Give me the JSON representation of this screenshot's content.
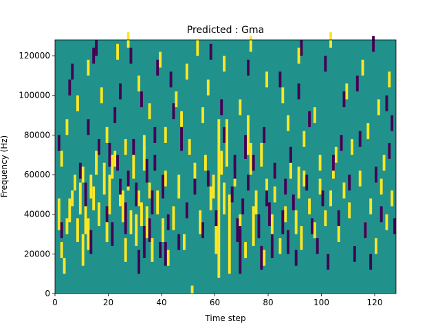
{
  "chart_data": {
    "type": "heatmap",
    "title": "Predicted : Gma",
    "xlabel": "Time step",
    "ylabel": "Frequency (Hz)",
    "xlim": [
      0,
      128
    ],
    "ylim": [
      0,
      128000
    ],
    "grid": false,
    "legend": "none",
    "xticks": [
      0,
      20,
      40,
      60,
      80,
      100,
      120
    ],
    "xtick_labels": [
      "0",
      "20",
      "40",
      "60",
      "80",
      "100",
      "120"
    ],
    "yticks": [
      0,
      20000,
      40000,
      60000,
      80000,
      100000,
      120000
    ],
    "ytick_labels": [
      "0",
      "20000",
      "40000",
      "60000",
      "80000",
      "100000",
      "120000"
    ],
    "colors": {
      "background": "#21918c",
      "high": "#fde725",
      "low": "#440154"
    },
    "cell_size": {
      "time_steps": 1,
      "hz": 2000
    },
    "high_cells": [
      [
        1,
        32000,
        8
      ],
      [
        2,
        18000,
        4
      ],
      [
        3,
        10000,
        4
      ],
      [
        4,
        30000,
        4
      ],
      [
        5,
        36000,
        6
      ],
      [
        6,
        44000,
        4
      ],
      [
        7,
        52000,
        4
      ],
      [
        8,
        26000,
        6
      ],
      [
        9,
        40000,
        8
      ],
      [
        10,
        14000,
        8
      ],
      [
        11,
        30000,
        10
      ],
      [
        12,
        22000,
        8
      ],
      [
        13,
        48000,
        6
      ],
      [
        14,
        42000,
        6
      ],
      [
        15,
        60000,
        6
      ],
      [
        16,
        34000,
        6
      ],
      [
        18,
        50000,
        8
      ],
      [
        19,
        26000,
        6
      ],
      [
        20,
        40000,
        10
      ],
      [
        21,
        58000,
        6
      ],
      [
        22,
        64000,
        4
      ],
      [
        24,
        44000,
        6
      ],
      [
        25,
        36000,
        8
      ],
      [
        26,
        16000,
        6
      ],
      [
        27,
        52000,
        4
      ],
      [
        28,
        30000,
        6
      ],
      [
        29,
        58000,
        6
      ],
      [
        30,
        24000,
        8
      ],
      [
        31,
        44000,
        4
      ],
      [
        32,
        34000,
        6
      ],
      [
        33,
        62000,
        6
      ],
      [
        34,
        28000,
        8
      ],
      [
        35,
        48000,
        4
      ],
      [
        36,
        16000,
        6
      ],
      [
        38,
        40000,
        6
      ],
      [
        40,
        26000,
        6
      ],
      [
        41,
        54000,
        4
      ],
      [
        42,
        14000,
        4
      ],
      [
        44,
        32000,
        6
      ],
      [
        46,
        48000,
        6
      ],
      [
        48,
        22000,
        4
      ],
      [
        50,
        70000,
        4
      ],
      [
        51,
        0,
        2
      ],
      [
        52,
        58000,
        4
      ],
      [
        54,
        30000,
        6
      ],
      [
        56,
        62000,
        4
      ],
      [
        58,
        42000,
        6
      ],
      [
        59,
        48000,
        6
      ],
      [
        60,
        20000,
        10
      ],
      [
        61,
        8000,
        40
      ],
      [
        62,
        60000,
        6
      ],
      [
        63,
        40000,
        8
      ],
      [
        64,
        64000,
        12
      ],
      [
        65,
        10000,
        20
      ],
      [
        67,
        54000,
        4
      ],
      [
        69,
        32000,
        4
      ],
      [
        71,
        18000,
        4
      ],
      [
        72,
        70000,
        10
      ],
      [
        73,
        60000,
        8
      ],
      [
        74,
        24000,
        10
      ],
      [
        75,
        40000,
        6
      ],
      [
        77,
        64000,
        6
      ],
      [
        78,
        14000,
        4
      ],
      [
        79,
        50000,
        4
      ],
      [
        81,
        28000,
        6
      ],
      [
        82,
        46000,
        4
      ],
      [
        84,
        20000,
        4
      ],
      [
        86,
        36000,
        4
      ],
      [
        88,
        58000,
        4
      ],
      [
        90,
        30000,
        6
      ],
      [
        91,
        48000,
        8
      ],
      [
        92,
        22000,
        6
      ],
      [
        93,
        54000,
        4
      ],
      [
        95,
        40000,
        4
      ],
      [
        97,
        28000,
        4
      ],
      [
        99,
        50000,
        4
      ],
      [
        101,
        34000,
        4
      ],
      [
        103,
        44000,
        4
      ],
      [
        104,
        58000,
        4
      ],
      [
        106,
        26000,
        4
      ],
      [
        108,
        48000,
        4
      ],
      [
        110,
        38000,
        4
      ],
      [
        112,
        16000,
        4
      ],
      [
        114,
        54000,
        4
      ],
      [
        116,
        28000,
        4
      ],
      [
        118,
        40000,
        4
      ],
      [
        120,
        20000,
        4
      ],
      [
        122,
        50000,
        4
      ],
      [
        124,
        32000,
        4
      ],
      [
        126,
        44000,
        4
      ],
      [
        8,
        92000,
        4
      ],
      [
        12,
        110000,
        4
      ],
      [
        17,
        96000,
        4
      ],
      [
        23,
        118000,
        4
      ],
      [
        27,
        124000,
        4
      ],
      [
        31,
        102000,
        4
      ],
      [
        35,
        88000,
        4
      ],
      [
        39,
        114000,
        4
      ],
      [
        45,
        94000,
        4
      ],
      [
        49,
        108000,
        4
      ],
      [
        53,
        120000,
        4
      ],
      [
        57,
        100000,
        4
      ],
      [
        63,
        112000,
        4
      ],
      [
        69,
        90000,
        4
      ],
      [
        73,
        122000,
        4
      ],
      [
        79,
        104000,
        4
      ],
      [
        85,
        96000,
        4
      ],
      [
        91,
        116000,
        4
      ],
      [
        97,
        86000,
        4
      ],
      [
        103,
        124000,
        4
      ],
      [
        109,
        98000,
        4
      ],
      [
        115,
        110000,
        4
      ],
      [
        121,
        90000,
        4
      ],
      [
        125,
        104000,
        4
      ],
      [
        4,
        80000,
        4
      ],
      [
        19,
        76000,
        4
      ],
      [
        33,
        72000,
        4
      ],
      [
        47,
        84000,
        4
      ],
      [
        77,
        68000,
        4
      ],
      [
        93,
        74000,
        4
      ],
      [
        105,
        66000,
        4
      ],
      [
        117,
        78000,
        4
      ],
      [
        2,
        64000,
        4
      ],
      [
        10,
        56000,
        4
      ],
      [
        26,
        70000,
        4
      ],
      [
        41,
        76000,
        4
      ],
      [
        55,
        86000,
        4
      ],
      [
        87,
        82000,
        4
      ],
      [
        99,
        62000,
        4
      ],
      [
        111,
        70000,
        4
      ],
      [
        123,
        62000,
        4
      ]
    ],
    "low_cells": [
      [
        2,
        28000,
        4
      ],
      [
        6,
        108000,
        4
      ],
      [
        9,
        58000,
        4
      ],
      [
        11,
        44000,
        6
      ],
      [
        13,
        20000,
        6
      ],
      [
        15,
        120000,
        4
      ],
      [
        16,
        70000,
        4
      ],
      [
        19,
        36000,
        4
      ],
      [
        20,
        64000,
        6
      ],
      [
        21,
        24000,
        6
      ],
      [
        22,
        86000,
        4
      ],
      [
        24,
        50000,
        4
      ],
      [
        26,
        30000,
        8
      ],
      [
        27,
        54000,
        4
      ],
      [
        28,
        116000,
        4
      ],
      [
        29,
        70000,
        4
      ],
      [
        30,
        44000,
        6
      ],
      [
        31,
        10000,
        6
      ],
      [
        32,
        94000,
        4
      ],
      [
        33,
        18000,
        8
      ],
      [
        34,
        56000,
        6
      ],
      [
        35,
        26000,
        6
      ],
      [
        36,
        40000,
        6
      ],
      [
        37,
        62000,
        4
      ],
      [
        38,
        110000,
        4
      ],
      [
        39,
        18000,
        4
      ],
      [
        40,
        48000,
        6
      ],
      [
        41,
        14000,
        6
      ],
      [
        42,
        32000,
        4
      ],
      [
        44,
        88000,
        4
      ],
      [
        46,
        22000,
        4
      ],
      [
        47,
        72000,
        6
      ],
      [
        49,
        38000,
        4
      ],
      [
        52,
        50000,
        4
      ],
      [
        55,
        28000,
        4
      ],
      [
        57,
        54000,
        4
      ],
      [
        60,
        34000,
        4
      ],
      [
        62,
        90000,
        4
      ],
      [
        66,
        46000,
        4
      ],
      [
        67,
        58000,
        6
      ],
      [
        68,
        26000,
        6
      ],
      [
        69,
        10000,
        12
      ],
      [
        70,
        40000,
        4
      ],
      [
        71,
        68000,
        6
      ],
      [
        72,
        52000,
        4
      ],
      [
        74,
        62000,
        4
      ],
      [
        76,
        28000,
        6
      ],
      [
        77,
        12000,
        6
      ],
      [
        78,
        76000,
        4
      ],
      [
        79,
        44000,
        4
      ],
      [
        80,
        34000,
        6
      ],
      [
        81,
        18000,
        6
      ],
      [
        82,
        58000,
        4
      ],
      [
        84,
        104000,
        4
      ],
      [
        85,
        30000,
        6
      ],
      [
        86,
        50000,
        4
      ],
      [
        87,
        20000,
        6
      ],
      [
        88,
        66000,
        4
      ],
      [
        89,
        42000,
        4
      ],
      [
        90,
        14000,
        4
      ],
      [
        92,
        120000,
        4
      ],
      [
        94,
        52000,
        4
      ],
      [
        96,
        30000,
        4
      ],
      [
        98,
        20000,
        4
      ],
      [
        100,
        44000,
        4
      ],
      [
        102,
        12000,
        4
      ],
      [
        104,
        62000,
        4
      ],
      [
        106,
        34000,
        4
      ],
      [
        108,
        94000,
        4
      ],
      [
        110,
        52000,
        4
      ],
      [
        112,
        16000,
        4
      ],
      [
        114,
        74000,
        4
      ],
      [
        116,
        28000,
        4
      ],
      [
        118,
        12000,
        4
      ],
      [
        120,
        56000,
        4
      ],
      [
        122,
        36000,
        4
      ],
      [
        124,
        92000,
        4
      ],
      [
        126,
        82000,
        4
      ],
      [
        127,
        30000,
        4
      ],
      [
        5,
        100000,
        4
      ],
      [
        14,
        116000,
        4
      ],
      [
        24,
        98000,
        4
      ],
      [
        43,
        104000,
        4
      ],
      [
        58,
        118000,
        4
      ],
      [
        72,
        110000,
        4
      ],
      [
        91,
        98000,
        4
      ],
      [
        101,
        112000,
        4
      ],
      [
        113,
        102000,
        4
      ],
      [
        119,
        122000,
        4
      ],
      [
        1,
        72000,
        4
      ],
      [
        12,
        80000,
        4
      ],
      [
        23,
        62000,
        4
      ],
      [
        37,
        76000,
        4
      ],
      [
        63,
        76000,
        4
      ],
      [
        95,
        84000,
        4
      ],
      [
        107,
        72000,
        4
      ],
      [
        125,
        68000,
        4
      ]
    ]
  }
}
